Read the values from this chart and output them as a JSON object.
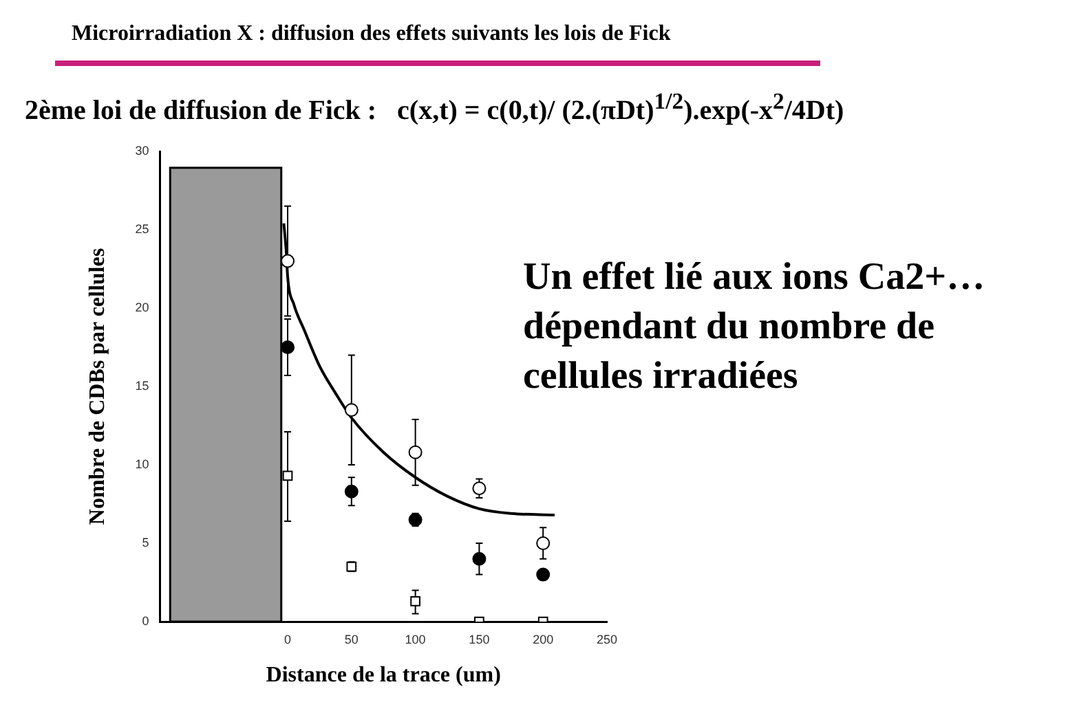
{
  "chart_data": {
    "type": "scatter",
    "title": "Microirradiation X : diffusion des effets suivants les lois de Fick",
    "subtitle": "2ème loi de diffusion de Fick :   c(x,t) = c(0,t)/ (2.(πDt)$^{1/2}$).exp(-x$^{2}$/4Dt)",
    "xlabel": "Distance de la trace (um)",
    "ylabel": "Nombre de CDBs par cellules",
    "annotations": [
      "Un effet lié aux ions Ca2+… dépendant du nombre de cellules irradiées"
    ],
    "x": [
      0,
      50,
      100,
      150,
      200
    ],
    "series": [
      {
        "color": "#ffffff",
        "marker": "circle",
        "values": [
          23,
          13.5,
          10.8,
          8.5,
          5
        ],
        "errors": [
          [
            19.5,
            26.5
          ],
          [
            10,
            17
          ],
          [
            8.7,
            12.9
          ],
          [
            7.9,
            9.1
          ],
          [
            4,
            6
          ]
        ]
      },
      {
        "color": "#000000",
        "marker": "circle",
        "values": [
          17.5,
          8.3,
          6.5,
          4,
          3
        ],
        "errors": [
          [
            15.7,
            19.3
          ],
          [
            7.4,
            9.2
          ],
          [
            6.1,
            6.9
          ],
          [
            3,
            5
          ],
          null
        ]
      },
      {
        "color": "#ffffff",
        "marker": "square",
        "values": [
          9.3,
          3.5,
          1.3,
          0,
          0
        ],
        "errors": [
          [
            6.4,
            12.1
          ],
          [
            3.2,
            3.8
          ],
          [
            0.5,
            2
          ],
          null,
          null
        ]
      },
      {
        "type": "line",
        "color": "#000000",
        "marker": "none",
        "x": [
          -3,
          -1,
          0,
          5,
          13,
          25,
          38,
          50,
          75,
          100,
          125,
          150,
          175,
          209
        ],
        "values": [
          25.4,
          23.5,
          22,
          20.2,
          18.6,
          16.3,
          14.5,
          13,
          10.8,
          9.2,
          8,
          7.2,
          6.9,
          6.8
        ]
      }
    ],
    "bands": [
      {
        "axis": "x",
        "from": -92,
        "to": -5,
        "color": "#9a9a9a"
      }
    ],
    "xlim": [
      -100,
      250
    ],
    "xticks": [
      0,
      50,
      100,
      150,
      200,
      250
    ],
    "ylim": [
      0,
      30
    ],
    "yticks": [
      0,
      5,
      10,
      15,
      20,
      25,
      30
    ],
    "grid": false,
    "legend": false
  }
}
